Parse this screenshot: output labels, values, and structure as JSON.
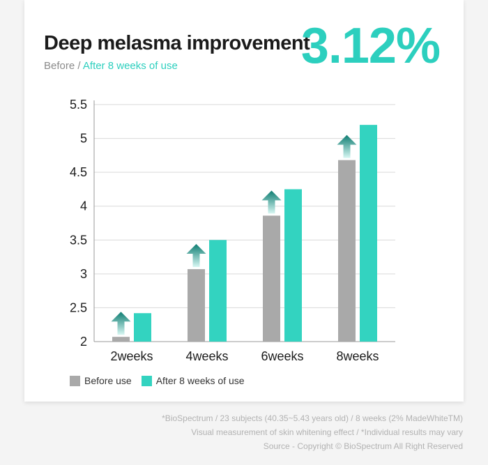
{
  "header": {
    "title": "Deep melasma improvement",
    "subtitle_before": "Before",
    "subtitle_sep": " / ",
    "subtitle_after": "After 8 weeks of use",
    "highlight": "3.12%"
  },
  "colors": {
    "before": "#a9a9a9",
    "after": "#33d3c0",
    "accent": "#2ccfbe",
    "arrow_top": "#0e7d72",
    "arrow_bottom": "#d8f7f3"
  },
  "chart_data": {
    "type": "bar",
    "categories": [
      "2weeks",
      "4weeks",
      "6weeks",
      "8weeks"
    ],
    "series": [
      {
        "name": "Before use",
        "values": [
          2.07,
          3.07,
          3.86,
          4.68
        ]
      },
      {
        "name": "After 8 weeks of use",
        "values": [
          2.42,
          3.5,
          4.25,
          5.2
        ]
      }
    ],
    "yticks": [
      "2",
      "2.5",
      "3",
      "3.5",
      "4",
      "4.5",
      "5",
      "5.5"
    ],
    "ylim": [
      2,
      5.5
    ],
    "grid": true,
    "legend_position": "bottom-left",
    "annotations": "upward arrow above each Before use bar"
  },
  "legend": {
    "before_label": "Before use",
    "after_label": "After 8 weeks of use"
  },
  "footnotes": {
    "line1": "*BioSpectrum / 23 subjects (40.35~5.43 years old) / 8 weeks (2% MadeWhiteTM)",
    "line2": "Visual measurement of skin whitening effect / *Individual results may vary",
    "line3": "Source - Copyright © BioSpectrum All Right Reserved"
  }
}
